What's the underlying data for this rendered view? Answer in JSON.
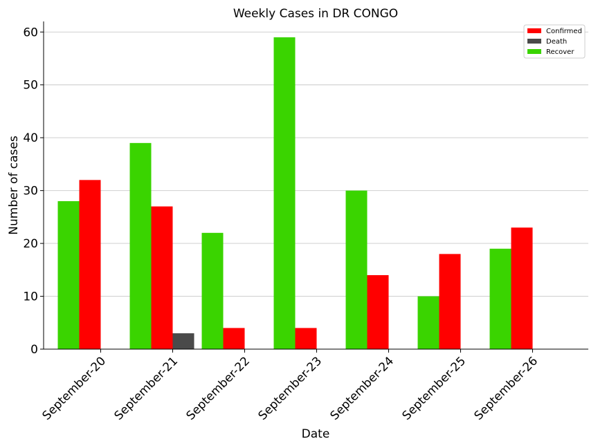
{
  "chart_data": {
    "type": "bar",
    "title": "Weekly Cases in DR CONGO",
    "xlabel": "Date",
    "ylabel": "Number of cases",
    "ylim": [
      0,
      62
    ],
    "yticks": [
      0,
      10,
      20,
      30,
      40,
      50,
      60
    ],
    "grid": "y-axis horizontal lines",
    "legend_position": "top-right",
    "categories": [
      "September-20",
      "September-21",
      "September-22",
      "September-23",
      "September-24",
      "September-25",
      "September-26"
    ],
    "series": [
      {
        "name": "Recover",
        "color": "#3ad400",
        "values": [
          28,
          39,
          22,
          59,
          30,
          10,
          19
        ]
      },
      {
        "name": "Confirmed",
        "color": "#ff0000",
        "values": [
          32,
          27,
          4,
          4,
          14,
          18,
          23
        ]
      },
      {
        "name": "Death",
        "color": "#4a4a4a",
        "values": [
          0,
          3,
          0,
          0,
          0,
          0,
          0
        ]
      }
    ],
    "legend_order": [
      "Confirmed",
      "Death",
      "Recover"
    ]
  }
}
